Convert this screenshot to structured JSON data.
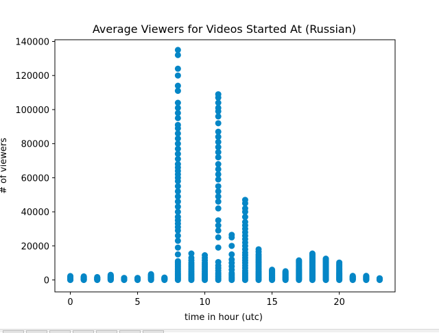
{
  "colors": {
    "marker": "#0586c6",
    "axes": "#000000",
    "background": "#ffffff"
  },
  "toolbar": {
    "buttons": [
      "home-icon",
      "back-icon",
      "forward-icon",
      "pan-icon",
      "zoom-icon",
      "configure-icon",
      "save-icon"
    ]
  },
  "chart_data": {
    "type": "scatter",
    "title": "Average Viewers for Videos Started At (Russian)",
    "xlabel": "time in hour (utc)",
    "ylabel": "# of viewers",
    "xlim": [
      -1.15,
      24.15
    ],
    "ylim": [
      -7000,
      141000
    ],
    "xticks": [
      0,
      5,
      10,
      15,
      20
    ],
    "yticks": [
      0,
      20000,
      40000,
      60000,
      80000,
      100000,
      120000,
      140000
    ],
    "grid": false,
    "marker_color": "#0586c6",
    "points_by_hour": [
      {
        "hour": 0,
        "viewers": [
          0,
          150,
          300,
          500,
          700,
          900,
          1100,
          1300,
          1500,
          1700,
          1900,
          2100,
          2300
        ]
      },
      {
        "hour": 1,
        "viewers": [
          0,
          150,
          300,
          500,
          700,
          900,
          1100,
          1300,
          1500,
          1700,
          1900,
          2100
        ]
      },
      {
        "hour": 2,
        "viewers": [
          0,
          150,
          300,
          500,
          700,
          900,
          1100,
          1300,
          1500,
          1700
        ]
      },
      {
        "hour": 3,
        "viewers": [
          0,
          200,
          400,
          600,
          800,
          1000,
          1200,
          1400,
          1600,
          1800,
          2000,
          2200,
          2400,
          2700,
          3000
        ]
      },
      {
        "hour": 4,
        "viewers": [
          0,
          200,
          400,
          600,
          800,
          1000,
          1200
        ]
      },
      {
        "hour": 5,
        "viewers": [
          0,
          200,
          400,
          600,
          800,
          1000,
          1200
        ]
      },
      {
        "hour": 6,
        "viewers": [
          0,
          300,
          600,
          900,
          1200,
          1500,
          1800,
          2100,
          2400,
          2700,
          3000,
          3400
        ]
      },
      {
        "hour": 7,
        "viewers": [
          0,
          200,
          400,
          600,
          800,
          1000,
          1200,
          1400
        ]
      },
      {
        "hour": 8,
        "viewers": [
          0,
          800,
          1600,
          2400,
          3200,
          4000,
          5000,
          6000,
          7000,
          8000,
          9000,
          10000,
          11000,
          15000,
          19000,
          23000,
          26000,
          29000,
          31000,
          33000,
          35000,
          37000,
          40000,
          43000,
          46000,
          49000,
          52000,
          55000,
          58000,
          60000,
          62000,
          64000,
          66000,
          68000,
          71000,
          74000,
          77000,
          80000,
          83000,
          86000,
          89000,
          91000,
          95000,
          98000,
          101000,
          104000,
          111000,
          114000,
          120000,
          124000,
          132000,
          135000
        ]
      },
      {
        "hour": 9,
        "viewers": [
          0,
          800,
          1600,
          2400,
          3200,
          4000,
          5000,
          6000,
          7000,
          8000,
          9000,
          10000,
          11500,
          13000,
          15500
        ]
      },
      {
        "hour": 10,
        "viewers": [
          0,
          800,
          1600,
          2400,
          3200,
          4000,
          5000,
          6000,
          7000,
          8000,
          9000,
          10000,
          11500,
          13000,
          14500
        ]
      },
      {
        "hour": 11,
        "viewers": [
          0,
          1000,
          2000,
          3000,
          4000,
          5500,
          7000,
          8500,
          10500,
          19000,
          25000,
          29000,
          32000,
          35000,
          42000,
          46000,
          49000,
          52000,
          55000,
          59000,
          62000,
          65000,
          68000,
          72000,
          75000,
          78000,
          81000,
          84000,
          87000,
          92000,
          96000,
          99000,
          101000,
          104000,
          107000,
          109000
        ]
      },
      {
        "hour": 12,
        "viewers": [
          0,
          800,
          1600,
          2400,
          3200,
          4000,
          6000,
          8000,
          10000,
          12000,
          15000,
          20000,
          25000,
          26500
        ]
      },
      {
        "hour": 13,
        "viewers": [
          0,
          900,
          1800,
          2700,
          3600,
          4500,
          5500,
          7000,
          8500,
          10000,
          11500,
          13000,
          14500,
          16000,
          18000,
          20000,
          22000,
          24000,
          26000,
          28000,
          30000,
          32000,
          34000,
          37000,
          40000,
          42000,
          45000,
          47000
        ]
      },
      {
        "hour": 14,
        "viewers": [
          0,
          700,
          1400,
          2100,
          2800,
          3500,
          4200,
          5000,
          6000,
          7000,
          8000,
          9000,
          10000,
          11000,
          12000,
          13000,
          14000,
          15000,
          16500,
          18000
        ]
      },
      {
        "hour": 15,
        "viewers": [
          0,
          300,
          600,
          900,
          1200,
          1500,
          1800,
          2100,
          2400,
          2700,
          3000,
          3300,
          3600,
          3900,
          4200,
          4500,
          4800,
          5100,
          5400,
          5700,
          6000
        ]
      },
      {
        "hour": 16,
        "viewers": [
          0,
          300,
          600,
          900,
          1200,
          1500,
          1800,
          2100,
          2400,
          2700,
          3000,
          3300,
          3600,
          3900,
          4200,
          4500,
          4800,
          5100
        ]
      },
      {
        "hour": 17,
        "viewers": [
          0,
          400,
          800,
          1200,
          1600,
          2000,
          2400,
          2800,
          3200,
          3600,
          4000,
          4400,
          4800,
          5200,
          5600,
          6000,
          6500,
          7000,
          7500,
          8000,
          8500,
          9000,
          9500,
          10000,
          10500,
          11000,
          11500
        ]
      },
      {
        "hour": 18,
        "viewers": [
          0,
          400,
          800,
          1200,
          1600,
          2000,
          2400,
          2800,
          3200,
          3600,
          4000,
          4400,
          4800,
          5200,
          5600,
          6000,
          6500,
          7000,
          7500,
          8000,
          8500,
          9000,
          9500,
          10000,
          10500,
          11000,
          11500,
          12000,
          12500,
          13000,
          13500,
          14000,
          14500,
          15000,
          15500
        ]
      },
      {
        "hour": 19,
        "viewers": [
          0,
          400,
          800,
          1200,
          1600,
          2000,
          2400,
          2800,
          3200,
          3600,
          4000,
          4400,
          4800,
          5200,
          5600,
          6000,
          6500,
          7000,
          7500,
          8000,
          8500,
          9000,
          9500,
          10000,
          10500,
          11000,
          11500,
          12000,
          12500
        ]
      },
      {
        "hour": 20,
        "viewers": [
          0,
          400,
          800,
          1200,
          1600,
          2000,
          2400,
          2800,
          3200,
          3600,
          4000,
          4500,
          5000,
          5500,
          6000,
          6500,
          7000,
          7500,
          8000,
          8500,
          9000,
          9500,
          10200
        ]
      },
      {
        "hour": 21,
        "viewers": [
          0,
          200,
          400,
          600,
          800,
          1000,
          1200,
          1400,
          1600,
          1800,
          2000,
          2200,
          2400
        ]
      },
      {
        "hour": 22,
        "viewers": [
          0,
          200,
          400,
          600,
          800,
          1000,
          1200,
          1400,
          1600,
          1800,
          2000,
          2200,
          2400
        ]
      },
      {
        "hour": 23,
        "viewers": [
          0,
          200,
          400,
          600,
          800,
          1000
        ]
      }
    ]
  }
}
